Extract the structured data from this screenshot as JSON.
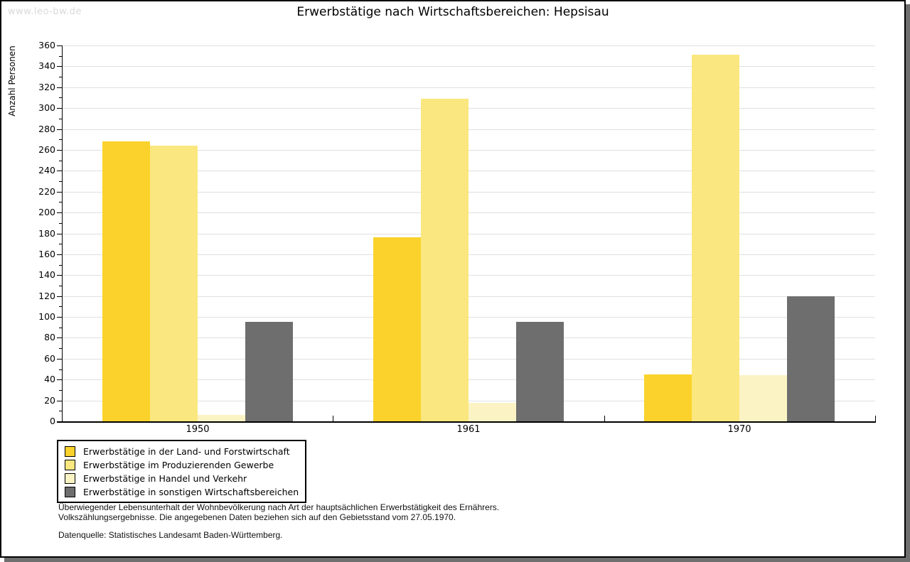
{
  "header": {
    "site": "www.leo-bw.de",
    "title": "Erwerbstätige nach Wirtschaftsbereichen: Hepsisau"
  },
  "chart_data": {
    "type": "bar",
    "title": "Erwerbstätige nach Wirtschaftsbereichen: Hepsisau",
    "xlabel": "",
    "ylabel": "Anzahl Personen",
    "categories": [
      "1950",
      "1961",
      "1970"
    ],
    "series": [
      {
        "name": "Erwerbstätige in der Land- und Forstwirtschaft",
        "color": "#FBD22B",
        "values": [
          268,
          176,
          45
        ]
      },
      {
        "name": "Erwerbstätige im Produzierenden Gewerbe",
        "color": "#FBE77F",
        "values": [
          264,
          309,
          351
        ]
      },
      {
        "name": "Erwerbstätige in Handel und Verkehr",
        "color": "#FCF3C5",
        "values": [
          6,
          18,
          44
        ]
      },
      {
        "name": "Erwerbstätige in sonstigen Wirtschaftsbereichen",
        "color": "#6E6E6E",
        "values": [
          95,
          95,
          120
        ]
      }
    ],
    "ylim": [
      0,
      360
    ],
    "ytick_step": 20,
    "yminor_step": 10,
    "grid": true,
    "legend_position": "bottom-left"
  },
  "footer": {
    "note_line1": "Überwiegender Lebensunterhalt der Wohnbevölkerung nach Art der hauptsächlichen Erwerbstätigkeit des Ernährers.",
    "note_line2": "Volkszählungsergebnisse. Die angegebenen Daten beziehen sich auf den Gebietsstand vom 27.05.1970.",
    "source": "Datenquelle: Statistisches Landesamt Baden-Württemberg."
  },
  "colors": {
    "grid": "#E0E0E0",
    "axis": "#000000",
    "frame_shadow": "#6F6F6F",
    "site_text": "#D9D9D9"
  }
}
